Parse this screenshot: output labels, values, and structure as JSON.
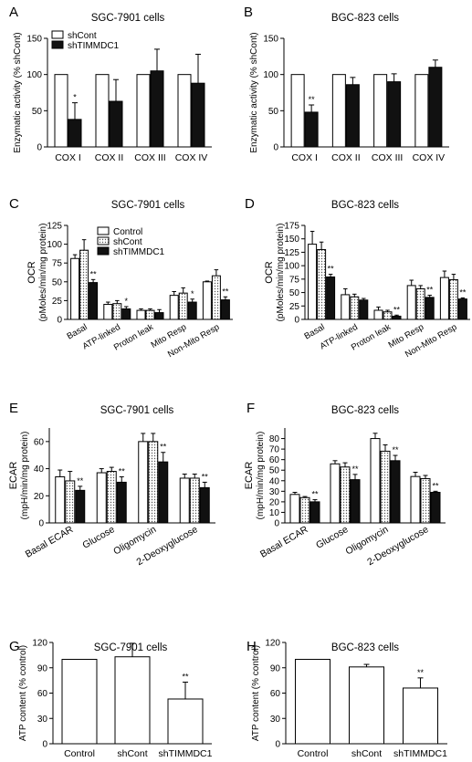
{
  "figure": {
    "panels": [
      "A",
      "B",
      "C",
      "D",
      "E",
      "F",
      "G",
      "H"
    ]
  },
  "chart_data": [
    {
      "panel": "A",
      "type": "bar",
      "title": "SGC-7901 cells",
      "xlabel": "",
      "ylabel": "Enzymatic activity (% shCont)",
      "ylim": [
        0,
        150
      ],
      "yticks": [
        0,
        50,
        100,
        150
      ],
      "categories": [
        "COX I",
        "COX II",
        "COX III",
        "COX IV"
      ],
      "legend": {
        "position": "top-left"
      },
      "series": [
        {
          "name": "shCont",
          "style": "white",
          "values": [
            100,
            100,
            100,
            100
          ],
          "errors": [
            0,
            0,
            0,
            0
          ],
          "stars": [
            "",
            "",
            "",
            ""
          ]
        },
        {
          "name": "shTIMMDC1",
          "style": "black",
          "values": [
            38,
            63,
            105,
            88
          ],
          "errors": [
            23,
            30,
            30,
            40
          ],
          "stars": [
            "*",
            "",
            "",
            ""
          ]
        }
      ]
    },
    {
      "panel": "B",
      "type": "bar",
      "title": "BGC-823 cells",
      "xlabel": "",
      "ylabel": "Enzymatic activity (% shCont)",
      "ylim": [
        0,
        150
      ],
      "yticks": [
        0,
        50,
        100,
        150
      ],
      "categories": [
        "COX I",
        "COX II",
        "COX III",
        "COX IV"
      ],
      "series": [
        {
          "name": "shCont",
          "style": "white",
          "values": [
            100,
            100,
            100,
            100
          ],
          "errors": [
            0,
            0,
            0,
            0
          ],
          "stars": [
            "",
            "",
            "",
            ""
          ]
        },
        {
          "name": "shTIMMDC1",
          "style": "black",
          "values": [
            48,
            86,
            90,
            110
          ],
          "errors": [
            10,
            10,
            11,
            10
          ],
          "stars": [
            "**",
            "",
            "",
            ""
          ]
        }
      ]
    },
    {
      "panel": "C",
      "type": "bar",
      "title": "SGC-7901 cells",
      "xlabel": "",
      "ylabel": "OCR",
      "ylabel2": "(pMoles/min/mg protein)",
      "ylim": [
        0,
        125
      ],
      "yticks": [
        0,
        25,
        50,
        75,
        100,
        125
      ],
      "categories": [
        "Basal",
        "ATP-linked",
        "Proton leak",
        "Mito Resp",
        "Non-Mito Resp"
      ],
      "legend": {
        "position": "top-center"
      },
      "series": [
        {
          "name": "Control",
          "style": "white",
          "values": [
            81,
            20,
            12,
            32,
            50
          ],
          "errors": [
            5,
            3,
            2,
            5,
            1
          ],
          "stars": [
            "",
            "",
            "",
            "",
            ""
          ]
        },
        {
          "name": "shCont",
          "style": "dotted",
          "values": [
            92,
            21,
            12,
            35,
            58
          ],
          "errors": [
            14,
            4,
            2,
            7,
            8
          ],
          "stars": [
            "",
            "",
            "",
            "",
            ""
          ]
        },
        {
          "name": "shTIMMDC1",
          "style": "black",
          "values": [
            49,
            14,
            9,
            23,
            26
          ],
          "errors": [
            4,
            3,
            4,
            4,
            4
          ],
          "stars": [
            "**",
            "*",
            "",
            "*",
            "**"
          ]
        }
      ]
    },
    {
      "panel": "D",
      "type": "bar",
      "title": "BGC-823 cells",
      "xlabel": "",
      "ylabel": "OCR",
      "ylabel2": "(pMoles/min/mg protein)",
      "ylim": [
        0,
        175
      ],
      "yticks": [
        0,
        25,
        50,
        75,
        100,
        125,
        150,
        175
      ],
      "categories": [
        "Basal",
        "ATP-linked",
        "Proton leak",
        "Mito Resp",
        "Non-Mito Resp"
      ],
      "series": [
        {
          "name": "Control",
          "style": "white",
          "values": [
            140,
            46,
            17,
            63,
            78
          ],
          "errors": [
            24,
            11,
            6,
            10,
            12
          ],
          "stars": [
            "",
            "",
            "",
            "",
            ""
          ]
        },
        {
          "name": "shCont",
          "style": "dotted",
          "values": [
            130,
            42,
            14,
            57,
            74
          ],
          "errors": [
            14,
            5,
            3,
            6,
            10
          ],
          "stars": [
            "",
            "",
            "",
            "",
            ""
          ]
        },
        {
          "name": "shTIMMDC1",
          "style": "black",
          "values": [
            79,
            36,
            6,
            41,
            38
          ],
          "errors": [
            5,
            3,
            2,
            4,
            2
          ],
          "stars": [
            "**",
            "",
            "**",
            "**",
            "**"
          ]
        }
      ]
    },
    {
      "panel": "E",
      "type": "bar",
      "title": "SGC-7901 cells",
      "xlabel": "",
      "ylabel": "ECAR",
      "ylabel2": "(mpH/min/mg protein)",
      "ylim": [
        0,
        70
      ],
      "yticks": [
        0,
        20,
        40,
        60
      ],
      "categories": [
        "Basal ECAR",
        "Glucose",
        "Oligomycin",
        "2-Deoxyglucose"
      ],
      "series": [
        {
          "name": "Control",
          "style": "white",
          "values": [
            34,
            37,
            60,
            33
          ],
          "errors": [
            5,
            3,
            6,
            3
          ],
          "stars": [
            "",
            "",
            "",
            ""
          ]
        },
        {
          "name": "shCont",
          "style": "dotted",
          "values": [
            31,
            38,
            60,
            33
          ],
          "errors": [
            7,
            3,
            6,
            3
          ],
          "stars": [
            "",
            "",
            "",
            ""
          ]
        },
        {
          "name": "shTIMMDC1",
          "style": "black",
          "values": [
            24,
            30,
            45,
            26
          ],
          "errors": [
            3,
            4,
            7,
            4
          ],
          "stars": [
            "**",
            "**",
            "**",
            "**"
          ]
        }
      ]
    },
    {
      "panel": "F",
      "type": "bar",
      "title": "BGC-823 cells",
      "xlabel": "",
      "ylabel": "ECAR",
      "ylabel2": "(mpH/min/mg protein)",
      "ylim": [
        0,
        90
      ],
      "yticks": [
        0,
        10,
        20,
        30,
        40,
        50,
        60,
        70,
        80
      ],
      "categories": [
        "Basal ECAR",
        "Glucose",
        "Oligomycin",
        "2-Deoxyglucose"
      ],
      "series": [
        {
          "name": "Control",
          "style": "white",
          "values": [
            27,
            56,
            80,
            44
          ],
          "errors": [
            2,
            3,
            5,
            4
          ],
          "stars": [
            "",
            "",
            "",
            ""
          ]
        },
        {
          "name": "shCont",
          "style": "dotted",
          "values": [
            24,
            53,
            68,
            42
          ],
          "errors": [
            1,
            4,
            6,
            3
          ],
          "stars": [
            "",
            "",
            "",
            ""
          ]
        },
        {
          "name": "shTIMMDC1",
          "style": "black",
          "values": [
            20,
            41,
            59,
            29
          ],
          "errors": [
            2,
            5,
            5,
            1
          ],
          "stars": [
            "**",
            "**",
            "**",
            "**"
          ]
        }
      ]
    },
    {
      "panel": "G",
      "type": "bar",
      "title": "SGC-7901 cells",
      "xlabel": "",
      "ylabel": "ATP content (% control)",
      "ylim": [
        0,
        120
      ],
      "yticks": [
        0,
        30,
        60,
        90,
        120
      ],
      "categories": [
        "Control",
        "shCont",
        "shTIMMDC1"
      ],
      "series": [
        {
          "name": "",
          "style": "white",
          "values": [
            100,
            103,
            53
          ],
          "errors": [
            0,
            16,
            20
          ],
          "stars": [
            "",
            "",
            "**"
          ]
        }
      ]
    },
    {
      "panel": "H",
      "type": "bar",
      "title": "BGC-823 cells",
      "xlabel": "",
      "ylabel": "ATP content (% control)",
      "ylim": [
        0,
        120
      ],
      "yticks": [
        0,
        30,
        60,
        90,
        120
      ],
      "categories": [
        "Control",
        "shCont",
        "shTIMMDC1"
      ],
      "series": [
        {
          "name": "",
          "style": "white",
          "values": [
            100,
            91,
            66
          ],
          "errors": [
            0,
            3,
            12
          ],
          "stars": [
            "",
            "",
            "**"
          ]
        }
      ]
    }
  ]
}
